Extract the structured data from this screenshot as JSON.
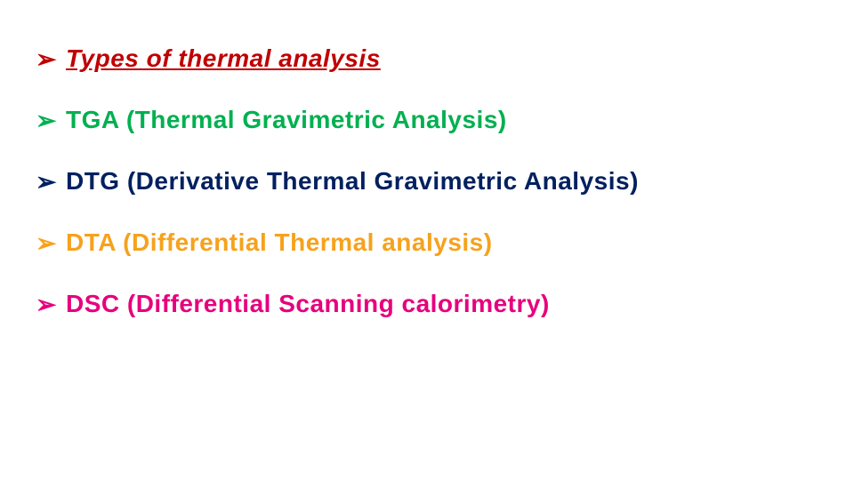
{
  "slide": {
    "background": "#ffffff",
    "bullet_glyph": "➢",
    "items": [
      {
        "text": "Types of thermal analysis",
        "color": "#c00000",
        "font_size": 28,
        "italic": true,
        "underline": true
      },
      {
        "text": "TGA (Thermal Gravimetric Analysis)",
        "color": "#00b050",
        "font_size": 28,
        "italic": false,
        "underline": false
      },
      {
        "text": "DTG (Derivative  Thermal Gravimetric Analysis)",
        "color": "#002060",
        "font_size": 28,
        "italic": false,
        "underline": false
      },
      {
        "text": "DTA (Differential Thermal analysis)",
        "color": "#f6a21c",
        "font_size": 28,
        "italic": false,
        "underline": false
      },
      {
        "text": "DSC (Differential Scanning calorimetry)",
        "color": "#e6007e",
        "font_size": 28,
        "italic": false,
        "underline": false
      }
    ]
  }
}
